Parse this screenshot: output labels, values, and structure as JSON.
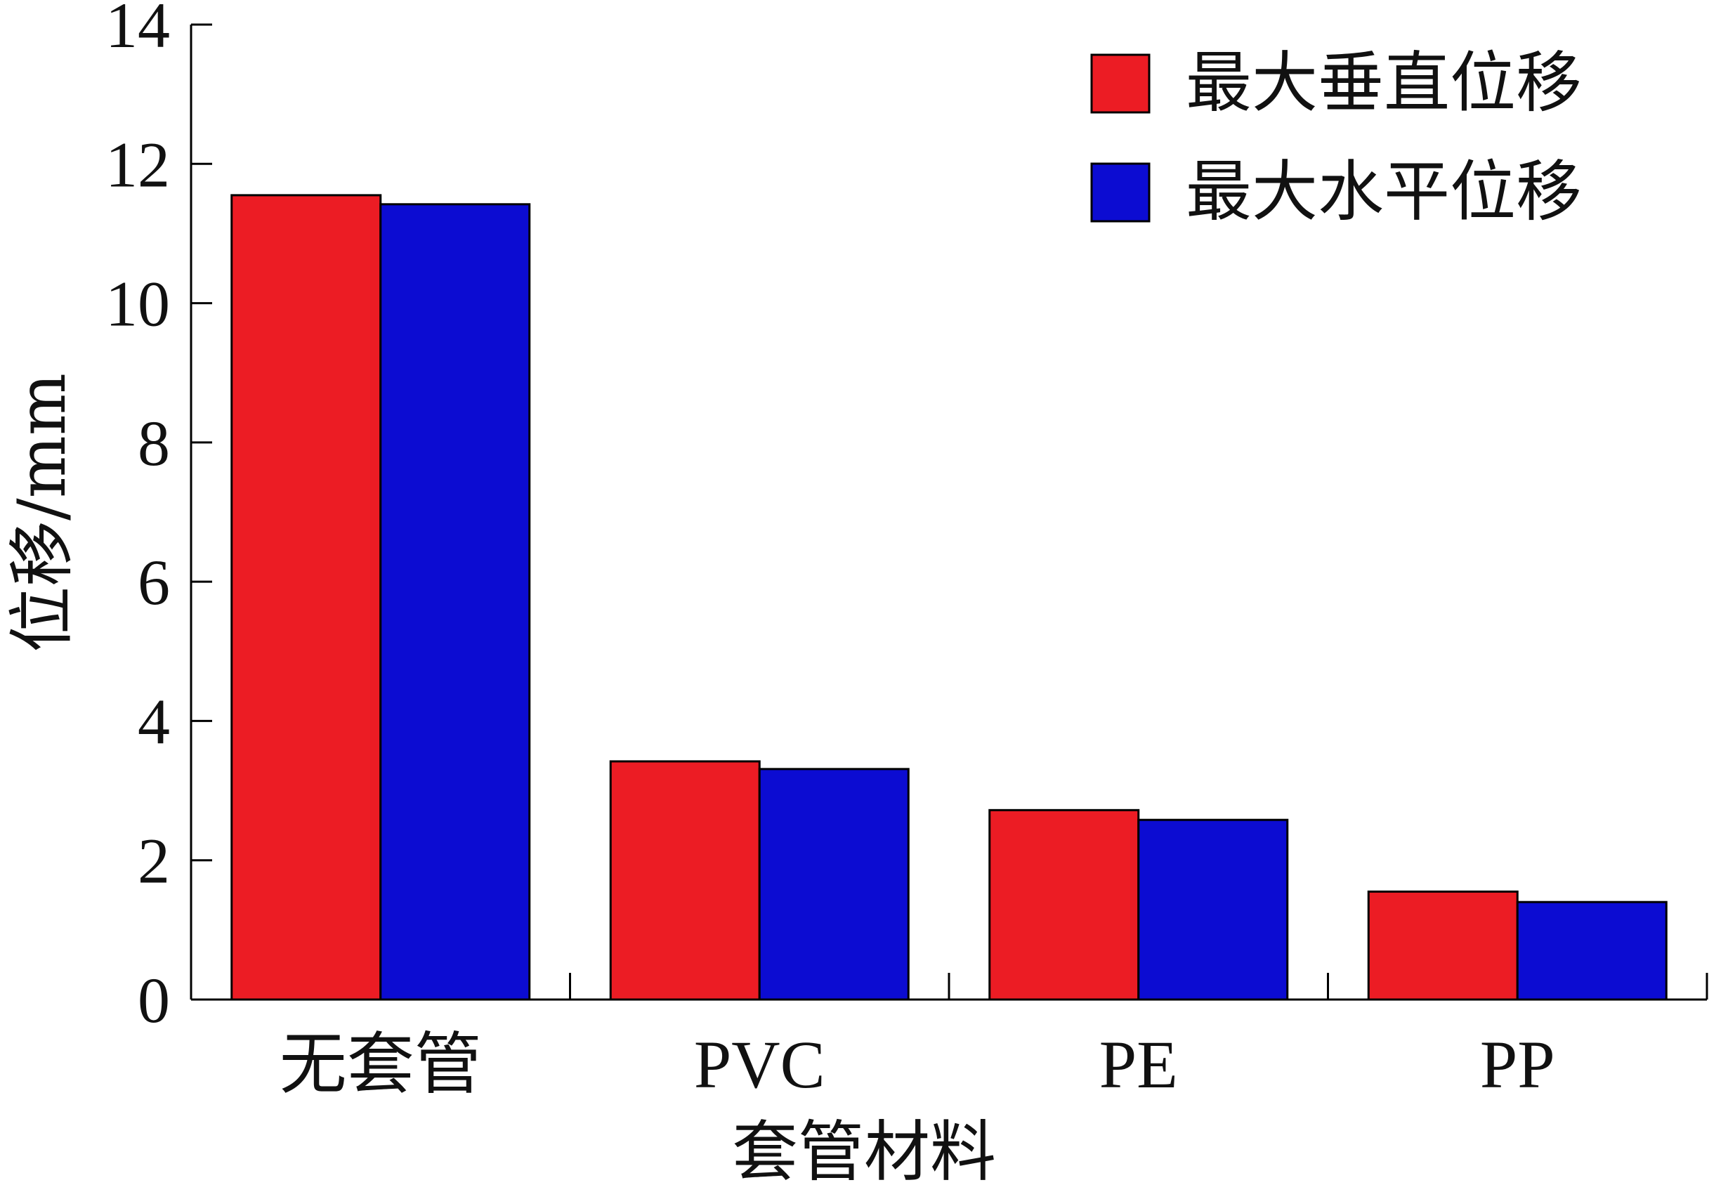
{
  "chart_data": {
    "type": "bar",
    "categories": [
      "无套管",
      "PVC",
      "PE",
      "PP"
    ],
    "series": [
      {
        "name": "最大垂直位移",
        "values": [
          11.55,
          3.42,
          2.72,
          1.55
        ],
        "color": "#ec1c24"
      },
      {
        "name": "最大水平位移",
        "values": [
          11.42,
          3.31,
          2.58,
          1.4
        ],
        "color": "#0c0cd2"
      }
    ],
    "xlabel": "套管材料",
    "ylabel": "位移/mm",
    "ylim": [
      0,
      14
    ],
    "yticks": [
      0,
      2,
      4,
      6,
      8,
      10,
      12,
      14
    ],
    "grid": false,
    "legend_position": "top-right",
    "bar_outline_color": "#000000"
  }
}
